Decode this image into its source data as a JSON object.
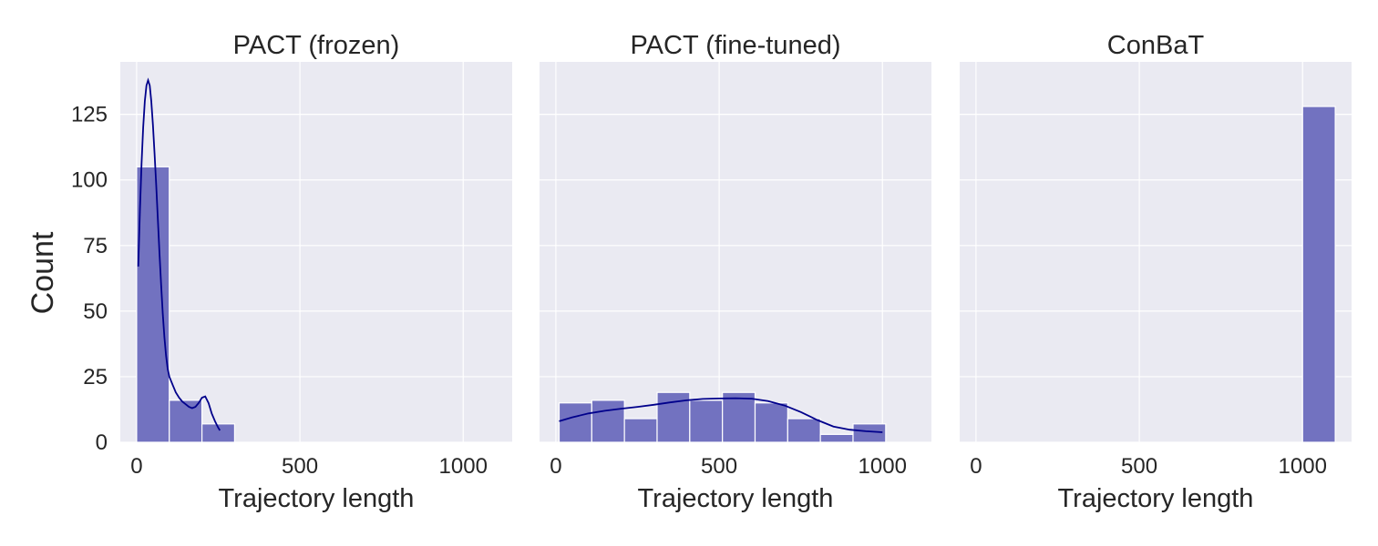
{
  "chart_data": {
    "type": "histogram",
    "shared_y": true,
    "ylabel": "Count",
    "ylim": [
      0,
      145
    ],
    "yticks": [
      0,
      25,
      50,
      75,
      100,
      125
    ],
    "xticks": [
      0,
      500,
      1000
    ],
    "grid": true,
    "panels": [
      {
        "title": "PACT (frozen)",
        "xlabel": "Trajectory length",
        "xlim": [
          -50,
          1150
        ],
        "bin_edges": [
          0,
          100,
          200,
          300
        ],
        "counts": [
          105,
          16,
          7
        ],
        "kde": {
          "x": [
            5,
            10,
            15,
            20,
            25,
            30,
            35,
            40,
            45,
            50,
            55,
            60,
            65,
            70,
            75,
            80,
            85,
            90,
            95,
            100,
            110,
            120,
            130,
            140,
            150,
            160,
            170,
            180,
            190,
            200,
            210,
            220,
            230,
            240,
            250,
            255
          ],
          "y": [
            67,
            88,
            106,
            120,
            130,
            136,
            138,
            136,
            130,
            121,
            110,
            98,
            85,
            72,
            60,
            49,
            40,
            33,
            28,
            25,
            22,
            19,
            17,
            15.5,
            14.5,
            13.5,
            13,
            13.5,
            15,
            17,
            17.5,
            15,
            11,
            8,
            5.5,
            4.5
          ]
        }
      },
      {
        "title": "PACT (fine-tuned)",
        "xlabel": "Trajectory length",
        "xlim": [
          -50,
          1150
        ],
        "bin_edges": [
          10,
          110,
          210,
          310,
          410,
          510,
          610,
          710,
          810,
          910,
          1010
        ],
        "counts": [
          15,
          16,
          9,
          19,
          16,
          19,
          15,
          9,
          3,
          7
        ],
        "kde": {
          "x": [
            10,
            50,
            100,
            150,
            200,
            250,
            300,
            350,
            400,
            450,
            500,
            550,
            600,
            650,
            700,
            750,
            800,
            850,
            900,
            950,
            1000
          ],
          "y": [
            8,
            9.5,
            11,
            12,
            12.8,
            13.5,
            14.3,
            15.2,
            16,
            16.5,
            16.7,
            16.8,
            16.6,
            15.7,
            14,
            11.5,
            8.5,
            6,
            4.8,
            4.2,
            3.8
          ]
        }
      },
      {
        "title": "ConBaT",
        "xlabel": "Trajectory length",
        "xlim": [
          -50,
          1150
        ],
        "bin_edges": [
          1000,
          1100
        ],
        "counts": [
          128
        ],
        "kde": null
      }
    ]
  }
}
